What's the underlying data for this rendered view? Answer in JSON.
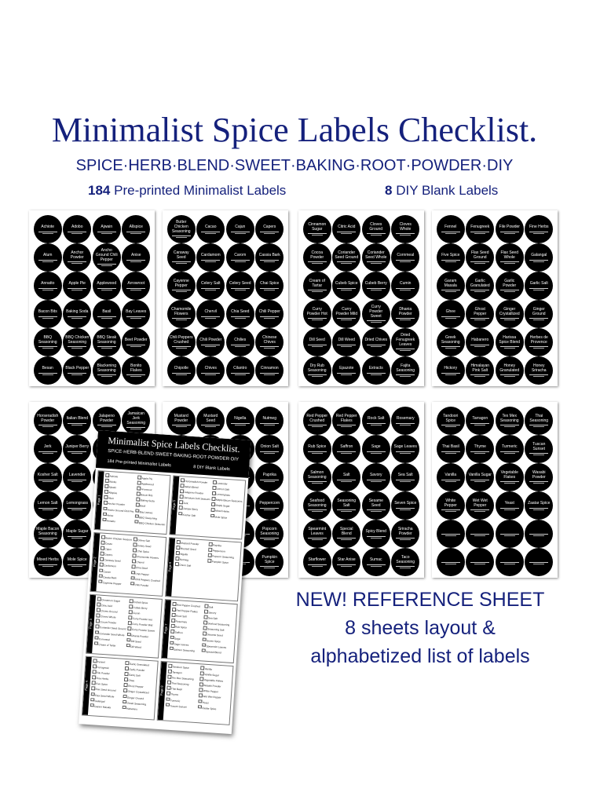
{
  "header": {
    "title": "Minimalist Spice Labels Checklist.",
    "subtitle": "SPICE·HERB·BLEND·SWEET·BAKING·ROOT·POWDER·DIY",
    "preprinted_count": "184",
    "preprinted_text": "Pre-printed Minimalist Labels",
    "blank_count": "8",
    "blank_text": "DIY Blank Labels"
  },
  "colors": {
    "accent": "#15217c",
    "label_bg": "#000000",
    "label_text": "#ffffff"
  },
  "sheets": [
    {
      "labels": [
        "Achiote",
        "Adobo",
        "Ajwain",
        "Allspice",
        "Alum",
        "Anchor Powder",
        "Ancho Ground Chili Pepper",
        "Anise",
        "Annatto",
        "Apple Pie",
        "Applewood",
        "Arrowroot",
        "Bacon Bits",
        "Baking Soda",
        "Basil",
        "Bay Leaves",
        "BBQ Seasoning",
        "BBQ Chicken Seasoning",
        "BBQ Steak Seasoning",
        "Beet Powder",
        "Besan",
        "Black Pepper",
        "Blackening Seasoning",
        "Bonito Flakes"
      ]
    },
    {
      "labels": [
        "Butter Chicken Seasoning",
        "Cacao",
        "Cajun",
        "Capers",
        "Caraway Seed",
        "Cardamom",
        "Carom",
        "Cassia Bark",
        "Cayenne Pepper",
        "Celery Salt",
        "Celery Seed",
        "Chai Spice",
        "Chamomile Flowers",
        "Chervil",
        "Chia Seed",
        "Chili Pepper",
        "Chili Peppers Crushed",
        "Chili Powder",
        "Chilies",
        "Chinese Chives",
        "Chipotle",
        "Chives",
        "Cilantro",
        "Cinnamon"
      ]
    },
    {
      "labels": [
        "Cinnamon Sugar",
        "Citric Acid",
        "Cloves Ground",
        "Cloves Whole",
        "Cocoa Powder",
        "Coriander Seed Ground",
        "Coriander Seed Whole",
        "Cornmeal",
        "Cream of Tartar",
        "Cubeb Spice",
        "Cubeb Berry",
        "Cumin",
        "Curry Powder Hot",
        "Curry Powder Mild",
        "Curry Powder Sweet",
        "Dhania Powder",
        "Dill Seed",
        "Dill Weed",
        "Dried Chives",
        "Dried Fenugreek Leaves",
        "Dry Rub Seasoning",
        "Epazote",
        "Extracts",
        "Fajita Seasoning"
      ]
    },
    {
      "labels": [
        "Fennel",
        "Fenugreek",
        "File Powder",
        "Fine Herbs",
        "Five Spice",
        "Flax Seed Ground",
        "Flax Seed Whole",
        "Galangal",
        "Garam Masala",
        "Garlic Granulated",
        "Garlic Powder",
        "Garlic Salt",
        "Ghee",
        "Ghost Pepper",
        "Ginger Crystallized",
        "Ginger Ground",
        "Greek Seasoning",
        "Habanero",
        "Harissa Spice Blend",
        "Herbes de Provence",
        "Hickory",
        "Himalayan Pink Salt",
        "Honey Granulated",
        "Honey Sriracha"
      ]
    },
    {
      "labels": [
        "Horseradish Powder",
        "Italian Blend",
        "Jalapeno Powder",
        "Jamaican Jerk Seasoning",
        "Jerk",
        "Juniper Berry",
        "",
        "",
        "Kosher Salt",
        "Lavender",
        "",
        "",
        "Lemon Salt",
        "Lemongrass",
        "",
        "",
        "Maple Bacon Seasoning",
        "Maple Sugar",
        "",
        "",
        "Mixed Herbs",
        "Mole Spice",
        "",
        ""
      ]
    },
    {
      "labels": [
        "Mustard Powder",
        "Mustard Seed",
        "Nigella",
        "Nutmeg",
        "",
        "",
        "",
        "Onion Salt",
        "",
        "",
        "",
        "Paprika",
        "",
        "",
        "",
        "Peppercorn",
        "",
        "",
        "",
        "Popcorn Seasoning",
        "",
        "",
        "",
        "Pumpkin Spice"
      ]
    },
    {
      "labels": [
        "Red Pepper Crushed",
        "Red Pepper Flakes",
        "Rock Salt",
        "Rosemary",
        "Rub Spice",
        "Saffron",
        "Sage",
        "Sage Leaves",
        "Salmon Seasoning",
        "Salt",
        "Savory",
        "Sea Salt",
        "Seafood Seasoning",
        "Seasoning Salt",
        "Sesame Seed",
        "Seven Spice",
        "Spearmint Leaves",
        "Special Blend",
        "Spicy Blend",
        "Sriracha Powder",
        "Starflower",
        "Star Anise",
        "Sumac",
        "Taco Seasoning"
      ]
    },
    {
      "labels": [
        "Tandoori Spice",
        "Tarragon",
        "Tex Mex Seasoning",
        "Thai Seasoning",
        "Thai Basil",
        "Thyme",
        "Turmeric",
        "Tuscan Sunset",
        "Vanilla",
        "Vanilla Sugar",
        "Vegetable Flakes",
        "Wasabi Powder",
        "White Pepper",
        "Wet Wet Pepper",
        "Yeast",
        "Zaatar Spice",
        "",
        "",
        "",
        "",
        "",
        "",
        "",
        ""
      ]
    }
  ],
  "checklist": {
    "title": "Minimalist Spice Labels Checklist.",
    "subtitle": "SPICE·HERB·BLEND·SWEET·BAKING·ROOT·POWDER·DIY",
    "preprinted": "184 Pre-printed Minimalist Labels",
    "blank": "8 DIY Blank Labels",
    "pages": [
      "Page 1",
      "Page 5",
      "Page 2",
      "Page 6",
      "Page 3",
      "Page 7",
      "Page 4",
      "Page 8"
    ]
  },
  "reference": {
    "line1": "NEW! REFERENCE SHEET",
    "line2": "8 sheets layout &",
    "line3": "alphabetized list of labels"
  }
}
